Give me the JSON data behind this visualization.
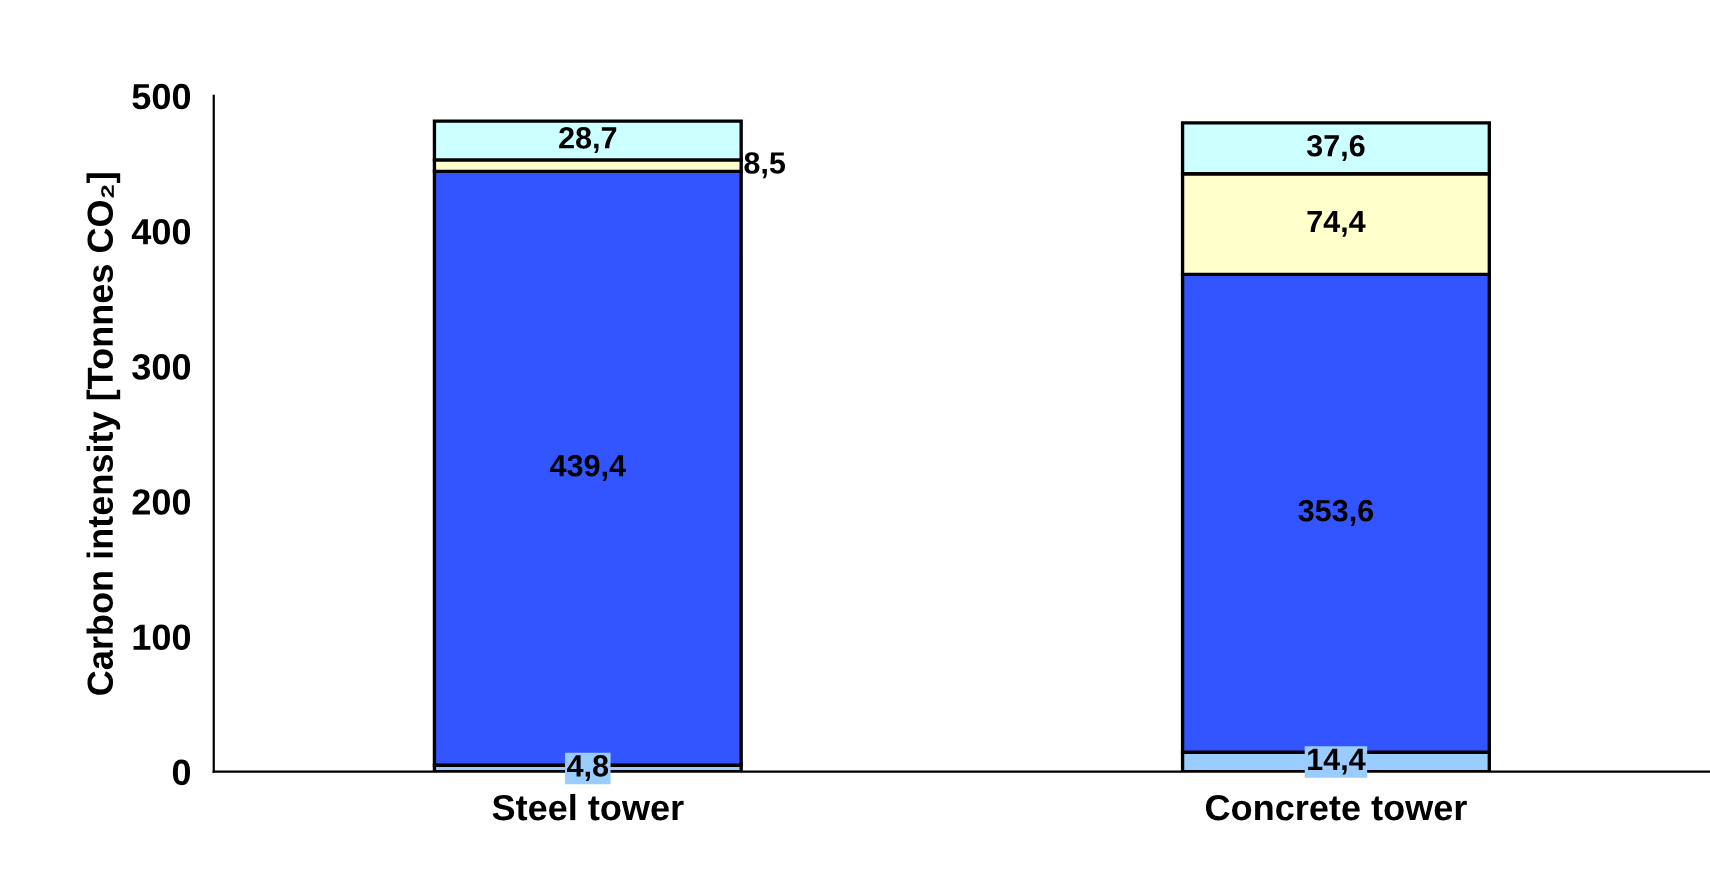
{
  "chart_data": {
    "type": "bar",
    "stacked": true,
    "ylabel": "Carbon intensity [Tonnes CO₂]",
    "categories": [
      "Steel tower",
      "Concrete tower"
    ],
    "ylim": [
      0,
      500
    ],
    "yticks": [
      0,
      100,
      200,
      300,
      400,
      500
    ],
    "grid": false,
    "series": [
      {
        "color": "#99ccff",
        "values": [
          4.8,
          14.4
        ],
        "value_labels": [
          "4,8",
          "14,4"
        ]
      },
      {
        "color": "#3355ff",
        "values": [
          439.4,
          353.6
        ],
        "value_labels": [
          "439,4",
          "353,6"
        ]
      },
      {
        "color": "#ffffcc",
        "values": [
          8.5,
          74.4
        ],
        "value_labels": [
          "8,5",
          "74,4"
        ]
      },
      {
        "color": "#ccffff",
        "values": [
          28.7,
          37.6
        ],
        "value_labels": [
          "28,7",
          "37,6"
        ]
      }
    ]
  }
}
